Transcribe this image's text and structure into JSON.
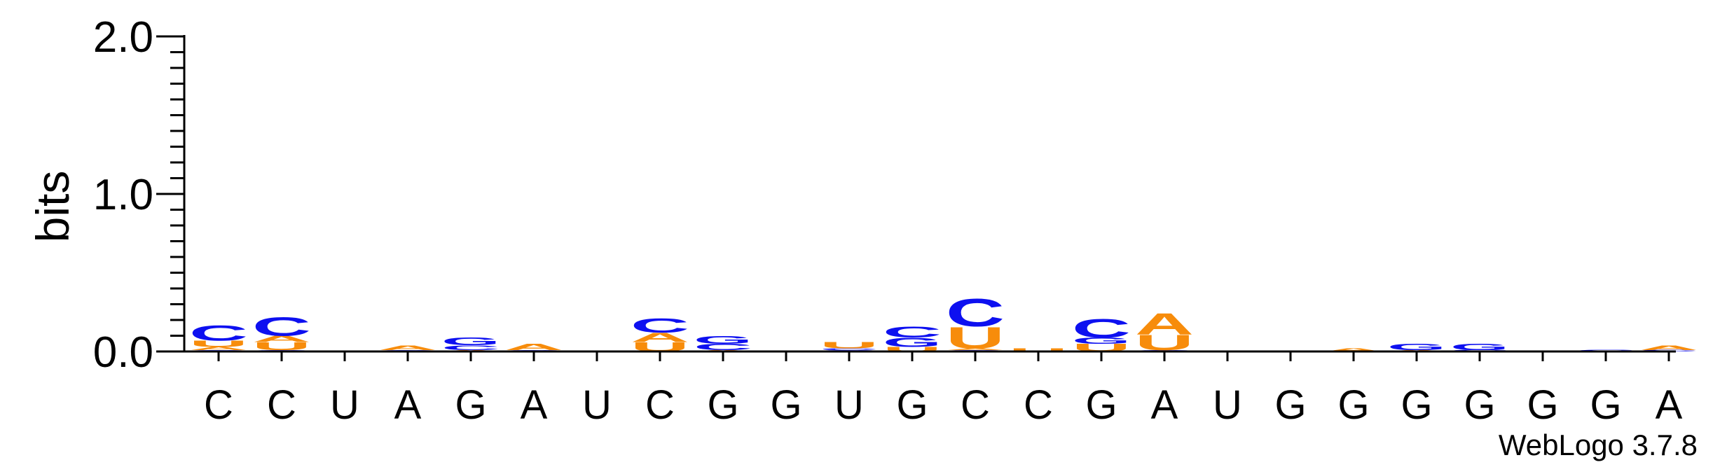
{
  "chart_data": {
    "type": "sequence-logo",
    "ylabel": "bits",
    "ylim": [
      0,
      2.0
    ],
    "y_ticks": [
      "0.0",
      "1.0",
      "2.0"
    ],
    "positions": [
      "C",
      "C",
      "U",
      "A",
      "G",
      "A",
      "U",
      "C",
      "G",
      "G",
      "U",
      "G",
      "C",
      "C",
      "G",
      "A",
      "U",
      "G",
      "G",
      "G",
      "G",
      "G",
      "G",
      "A"
    ],
    "stacks": [
      [
        {
          "letter": "G",
          "bits": 0.01
        },
        {
          "letter": "A",
          "bits": 0.02
        },
        {
          "letter": "U",
          "bits": 0.04
        },
        {
          "letter": "C",
          "bits": 0.1
        }
      ],
      [
        {
          "letter": "G",
          "bits": 0.01
        },
        {
          "letter": "U",
          "bits": 0.05
        },
        {
          "letter": "A",
          "bits": 0.04
        },
        {
          "letter": "C",
          "bits": 0.12
        }
      ],
      [],
      [
        {
          "letter": "G",
          "bits": 0.01
        },
        {
          "letter": "A",
          "bits": 0.03
        }
      ],
      [
        {
          "letter": "A",
          "bits": 0.01
        },
        {
          "letter": "C",
          "bits": 0.03
        },
        {
          "letter": "G",
          "bits": 0.05
        }
      ],
      [
        {
          "letter": "G",
          "bits": 0.01
        },
        {
          "letter": "A",
          "bits": 0.04
        }
      ],
      [],
      [
        {
          "letter": "U",
          "bits": 0.06
        },
        {
          "letter": "A",
          "bits": 0.06
        },
        {
          "letter": "C",
          "bits": 0.09
        }
      ],
      [
        {
          "letter": "A",
          "bits": 0.01
        },
        {
          "letter": "C",
          "bits": 0.04
        },
        {
          "letter": "G",
          "bits": 0.05
        }
      ],
      [],
      [
        {
          "letter": "G",
          "bits": 0.01
        },
        {
          "letter": "C",
          "bits": 0.01
        },
        {
          "letter": "U",
          "bits": 0.04
        }
      ],
      [
        {
          "letter": "U",
          "bits": 0.03
        },
        {
          "letter": "G",
          "bits": 0.06
        },
        {
          "letter": "C",
          "bits": 0.07
        }
      ],
      [
        {
          "letter": "G",
          "bits": 0.01
        },
        {
          "letter": "A",
          "bits": 0.01
        },
        {
          "letter": "U",
          "bits": 0.14
        },
        {
          "letter": "C",
          "bits": 0.18
        }
      ],
      [
        {
          "letter": "U",
          "bits": 0.02
        }
      ],
      [
        {
          "letter": "U",
          "bits": 0.05
        },
        {
          "letter": "G",
          "bits": 0.04
        },
        {
          "letter": "C",
          "bits": 0.12
        }
      ],
      [
        {
          "letter": "G",
          "bits": 0.01
        },
        {
          "letter": "U",
          "bits": 0.1
        },
        {
          "letter": "A",
          "bits": 0.14
        }
      ],
      [],
      [],
      [
        {
          "letter": "A",
          "bits": 0.02
        }
      ],
      [
        {
          "letter": "A",
          "bits": 0.01
        },
        {
          "letter": "G",
          "bits": 0.04
        }
      ],
      [
        {
          "letter": "C",
          "bits": 0.01
        },
        {
          "letter": "G",
          "bits": 0.04
        }
      ],
      [],
      [
        {
          "letter": "C",
          "bits": 0.01
        }
      ],
      [
        {
          "letter": "C",
          "bits": 0.01
        },
        {
          "letter": "A",
          "bits": 0.03
        }
      ]
    ],
    "colors": {
      "A": "#f78c0b",
      "U": "#f78c0b",
      "C": "#0d10f0",
      "G": "#0d10f0"
    },
    "credit": "WebLogo 3.7.8"
  }
}
